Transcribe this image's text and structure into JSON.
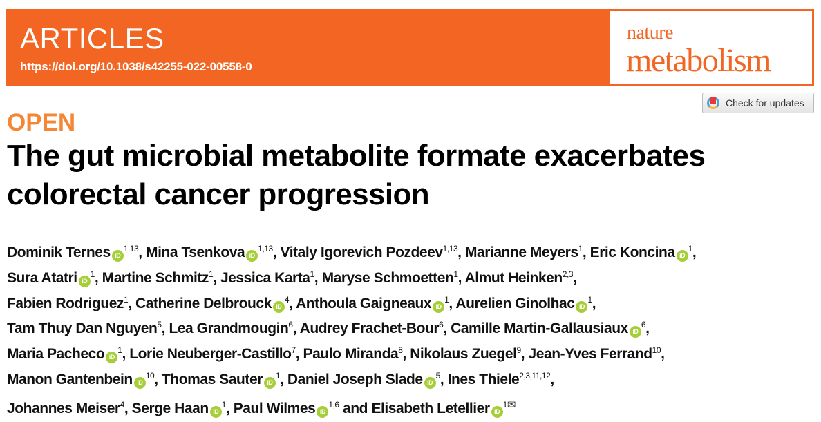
{
  "header": {
    "section": "ARTICLES",
    "doi": "https://doi.org/10.1038/s42255-022-00558-0",
    "brand_color": "#f26522",
    "journal_logo": {
      "line1": "nature",
      "line2": "metabolism"
    }
  },
  "check_updates": {
    "label": "Check for updates",
    "icon": "crossmark-icon"
  },
  "open_label": "OPEN",
  "title_lines": [
    "The gut microbial metabolite formate exacerbates",
    "colorectal cancer progression"
  ],
  "orcid_color": "#a6ce39",
  "author_lines": [
    [
      {
        "name": "Dominik Ternes",
        "orcid": true,
        "sup": "1,13",
        "sep": ", "
      },
      {
        "name": "Mina Tsenkova",
        "orcid": true,
        "sup": "1,13",
        "sep": ", "
      },
      {
        "name": "Vitaly Igorevich Pozdeev",
        "orcid": false,
        "sup": "1,13",
        "sep": ", "
      },
      {
        "name": "Marianne Meyers",
        "orcid": false,
        "sup": "1",
        "sep": ", "
      },
      {
        "name": "Eric Koncina",
        "orcid": true,
        "sup": "1",
        "sep": ","
      }
    ],
    [
      {
        "name": "Sura Atatri",
        "orcid": true,
        "sup": "1",
        "sep": ", "
      },
      {
        "name": "Martine Schmitz",
        "orcid": false,
        "sup": "1",
        "sep": ", "
      },
      {
        "name": "Jessica Karta",
        "orcid": false,
        "sup": "1",
        "sep": ", "
      },
      {
        "name": "Maryse Schmoetten",
        "orcid": false,
        "sup": "1",
        "sep": ", "
      },
      {
        "name": "Almut Heinken",
        "orcid": false,
        "sup": "2,3",
        "sep": ","
      }
    ],
    [
      {
        "name": "Fabien Rodriguez",
        "orcid": false,
        "sup": "1",
        "sep": ", "
      },
      {
        "name": "Catherine Delbrouck",
        "orcid": true,
        "sup": "4",
        "sep": ", "
      },
      {
        "name": "Anthoula Gaigneaux",
        "orcid": true,
        "sup": "1",
        "sep": ", "
      },
      {
        "name": "Aurelien Ginolhac",
        "orcid": true,
        "sup": "1",
        "sep": ","
      }
    ],
    [
      {
        "name": "Tam Thuy Dan Nguyen",
        "orcid": false,
        "sup": "5",
        "sep": ", "
      },
      {
        "name": "Lea Grandmougin",
        "orcid": false,
        "sup": "6",
        "sep": ", "
      },
      {
        "name": "Audrey Frachet-Bour",
        "orcid": false,
        "sup": "6",
        "sep": ", "
      },
      {
        "name": "Camille Martin-Gallausiaux",
        "orcid": true,
        "sup": "6",
        "sep": ","
      }
    ],
    [
      {
        "name": "Maria Pacheco",
        "orcid": true,
        "sup": "1",
        "sep": ", "
      },
      {
        "name": "Lorie Neuberger-Castillo",
        "orcid": false,
        "sup": "7",
        "sep": ", "
      },
      {
        "name": "Paulo Miranda",
        "orcid": false,
        "sup": "8",
        "sep": ", "
      },
      {
        "name": "Nikolaus Zuegel",
        "orcid": false,
        "sup": "9",
        "sep": ", "
      },
      {
        "name": "Jean-Yves Ferrand",
        "orcid": false,
        "sup": "10",
        "sep": ","
      }
    ],
    [
      {
        "name": "Manon Gantenbein",
        "orcid": true,
        "sup": "10",
        "sep": ", "
      },
      {
        "name": "Thomas Sauter",
        "orcid": true,
        "sup": "1",
        "sep": ", "
      },
      {
        "name": "Daniel Joseph Slade",
        "orcid": true,
        "sup": "5",
        "sep": ", "
      },
      {
        "name": "Ines Thiele",
        "orcid": false,
        "sup": "2,3,11,12",
        "sep": ","
      }
    ],
    [
      {
        "name": "Johannes Meiser",
        "orcid": false,
        "sup": "4",
        "sep": ", "
      },
      {
        "name": "Serge Haan",
        "orcid": true,
        "sup": "1",
        "sep": ", "
      },
      {
        "name": "Paul Wilmes",
        "orcid": true,
        "sup": "1,6",
        "sep": " and "
      },
      {
        "name": "Elisabeth Letellier",
        "orcid": true,
        "sup": "1",
        "sep": "",
        "corresponding": true
      }
    ]
  ]
}
